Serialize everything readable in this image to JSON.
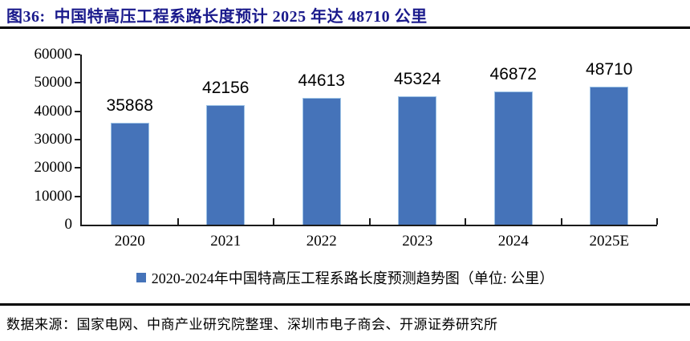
{
  "title": "图36:  中国特高压工程系路长度预计 2025 年达 48710 公里",
  "chart_data": {
    "type": "bar",
    "title": "中国特高压工程系路长度预计 2025 年达 48710 公里",
    "categories": [
      "2020",
      "2021",
      "2022",
      "2023",
      "2024",
      "2025E"
    ],
    "values": [
      35868,
      42156,
      44613,
      45324,
      46872,
      48710
    ],
    "xlabel": "",
    "ylabel": "",
    "ylim": [
      0,
      60000
    ],
    "ytick_step": 10000,
    "ytick_labels": [
      "0",
      "10000",
      "20000",
      "30000",
      "40000",
      "50000",
      "60000"
    ],
    "grid": false,
    "legend_position": "bottom",
    "legend": "2020-2024年中国特高压工程系路长度预测趋势图（单位: 公里）",
    "bar_color": "#4573B9",
    "bar_border_color": "#9DC3E6",
    "axis_color": "#1a1a1a"
  },
  "footer": {
    "source": "数据来源：国家电网、中商产业研究院整理、深圳市电子商会、开源证券研究所"
  }
}
